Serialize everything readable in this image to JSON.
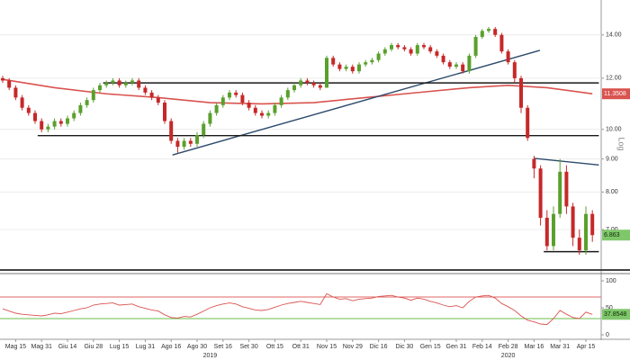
{
  "chart_data": {
    "type": "candlestick",
    "categories": [
      null,
      null,
      "Mag 15",
      null,
      null,
      null,
      "Mag 31",
      null,
      null,
      null,
      "Giu 14",
      null,
      null,
      null,
      "Giu 28",
      null,
      null,
      null,
      "Lug 15",
      null,
      null,
      null,
      "Lug 31",
      null,
      null,
      null,
      "Ago 16",
      null,
      null,
      null,
      "Ago 30",
      null,
      null,
      null,
      "Set 16",
      null,
      null,
      null,
      "Set 30",
      null,
      null,
      null,
      "Ott 15",
      null,
      null,
      null,
      "Ott 31",
      null,
      null,
      null,
      "Nov 15",
      null,
      null,
      null,
      "Nov 29",
      null,
      null,
      null,
      "Dic 16",
      null,
      null,
      null,
      "Dic 30",
      null,
      null,
      null,
      "Gen 15",
      null,
      null,
      null,
      "Gen 31",
      null,
      null,
      null,
      "Feb 14",
      null,
      null,
      null,
      "Feb 28",
      null,
      null,
      null,
      "Mar 16",
      null,
      null,
      null,
      "Mar 31",
      null,
      null,
      null,
      "Apr 15",
      null
    ],
    "open": [
      12.0,
      11.9,
      11.6,
      11.2,
      10.8,
      10.6,
      10.3,
      10.0,
      10.1,
      10.3,
      10.2,
      10.4,
      10.6,
      10.9,
      11.1,
      11.5,
      11.7,
      11.8,
      11.9,
      11.7,
      11.8,
      11.9,
      11.6,
      11.4,
      11.2,
      11.0,
      10.3,
      9.6,
      9.4,
      9.6,
      9.5,
      9.8,
      10.2,
      10.6,
      10.9,
      11.2,
      11.4,
      11.3,
      11.0,
      10.8,
      10.6,
      10.5,
      10.6,
      10.9,
      11.2,
      11.5,
      11.7,
      11.9,
      11.8,
      11.7,
      11.6,
      12.9,
      12.6,
      12.4,
      12.5,
      12.3,
      12.6,
      12.7,
      12.8,
      13.1,
      13.3,
      13.5,
      13.4,
      13.3,
      13.1,
      13.5,
      13.4,
      13.2,
      13.0,
      12.7,
      12.5,
      12.6,
      12.3,
      13.0,
      13.9,
      14.2,
      14.3,
      14.0,
      13.2,
      12.7,
      12.0,
      10.8,
      9.0,
      8.7,
      7.3,
      6.6,
      7.4,
      8.6,
      7.6,
      6.8,
      6.5,
      7.4
    ],
    "high": [
      12.1,
      12.0,
      11.7,
      11.3,
      10.9,
      10.7,
      10.4,
      10.2,
      10.4,
      10.4,
      10.5,
      10.7,
      11.0,
      11.2,
      11.6,
      11.8,
      11.9,
      12.0,
      12.0,
      11.9,
      12.0,
      12.0,
      11.7,
      11.5,
      11.3,
      11.1,
      10.4,
      9.7,
      9.7,
      9.7,
      9.9,
      10.3,
      10.7,
      11.0,
      11.3,
      11.5,
      11.5,
      11.4,
      11.1,
      10.9,
      10.7,
      10.7,
      11.0,
      11.3,
      11.6,
      11.8,
      12.0,
      12.0,
      11.9,
      11.8,
      13.0,
      13.0,
      12.7,
      12.6,
      12.6,
      12.7,
      12.8,
      12.9,
      13.2,
      13.4,
      13.6,
      13.6,
      13.5,
      13.4,
      13.6,
      13.6,
      13.5,
      13.3,
      13.1,
      12.8,
      12.7,
      12.7,
      13.1,
      14.0,
      14.3,
      14.4,
      14.4,
      14.1,
      13.3,
      12.8,
      12.1,
      10.9,
      9.1,
      8.8,
      7.5,
      7.6,
      9.0,
      8.8,
      7.7,
      7.0,
      7.6,
      7.5
    ],
    "low": [
      11.8,
      11.5,
      11.1,
      10.7,
      10.5,
      10.2,
      9.9,
      9.9,
      10.0,
      10.1,
      10.1,
      10.3,
      10.5,
      10.8,
      11.0,
      11.4,
      11.6,
      11.7,
      11.6,
      11.6,
      11.7,
      11.5,
      11.3,
      11.1,
      10.9,
      10.2,
      9.5,
      9.2,
      9.3,
      9.4,
      9.4,
      9.7,
      10.1,
      10.5,
      10.8,
      11.1,
      11.2,
      10.9,
      10.7,
      10.5,
      10.4,
      10.4,
      10.5,
      10.8,
      11.1,
      11.4,
      11.6,
      11.7,
      11.6,
      11.5,
      11.6,
      12.5,
      12.3,
      12.3,
      12.2,
      12.2,
      12.5,
      12.6,
      12.7,
      13.0,
      13.2,
      13.3,
      13.2,
      13.0,
      13.0,
      13.3,
      13.1,
      12.9,
      12.6,
      12.4,
      12.4,
      12.2,
      12.2,
      12.9,
      13.8,
      14.1,
      13.9,
      13.1,
      12.6,
      11.8,
      10.6,
      9.6,
      8.4,
      7.1,
      6.5,
      6.5,
      7.3,
      7.4,
      6.6,
      6.4,
      6.4,
      6.7
    ],
    "close": [
      11.9,
      11.6,
      11.2,
      10.8,
      10.6,
      10.3,
      10.0,
      10.1,
      10.3,
      10.2,
      10.4,
      10.6,
      10.9,
      11.1,
      11.5,
      11.7,
      11.8,
      11.9,
      11.7,
      11.8,
      11.9,
      11.6,
      11.4,
      11.2,
      11.0,
      10.3,
      9.6,
      9.4,
      9.6,
      9.5,
      9.8,
      10.2,
      10.6,
      10.9,
      11.2,
      11.4,
      11.3,
      11.0,
      10.8,
      10.6,
      10.5,
      10.6,
      10.9,
      11.2,
      11.5,
      11.7,
      11.9,
      11.8,
      11.7,
      11.6,
      12.9,
      12.6,
      12.4,
      12.5,
      12.3,
      12.6,
      12.7,
      12.8,
      13.1,
      13.3,
      13.5,
      13.4,
      13.3,
      13.1,
      13.5,
      13.4,
      13.2,
      13.0,
      12.7,
      12.5,
      12.6,
      12.3,
      13.0,
      13.9,
      14.2,
      14.3,
      14.0,
      13.2,
      12.7,
      12.0,
      10.8,
      9.7,
      8.7,
      7.3,
      6.6,
      7.4,
      8.6,
      7.6,
      6.8,
      6.5,
      7.4,
      6.863
    ],
    "close_label": "6.863",
    "colors": {
      "up": "#5aa02c",
      "down": "#c62828"
    },
    "ylim": [
      6.1,
      15.6
    ],
    "log_scale": true,
    "scale_label": "Log",
    "yticks": [
      {
        "value": 7,
        "label": "7.00"
      },
      {
        "value": 8,
        "label": "8.00"
      },
      {
        "value": 9,
        "label": "9.00"
      },
      {
        "value": 10,
        "label": "10.00"
      },
      {
        "value": 12,
        "label": "12.00"
      },
      {
        "value": 14,
        "label": "14.00"
      }
    ],
    "grid": true,
    "moving_average": {
      "color": "#d9534f",
      "x": [
        0,
        8,
        16,
        24,
        32,
        40,
        48,
        56,
        64,
        72,
        78,
        84,
        91
      ],
      "values": [
        11.95,
        11.6,
        11.35,
        11.2,
        11.0,
        10.95,
        11.0,
        11.2,
        11.4,
        11.6,
        11.7,
        11.6,
        11.3508
      ],
      "value_label": "11.3508"
    },
    "trendlines": [
      {
        "color": "#2c4a6b",
        "x": [
          26.2,
          82.9
        ],
        "values": [
          9.13,
          13.25
        ]
      },
      {
        "color": "#1a1a1a",
        "x": [
          15.5,
          92
        ],
        "values": [
          11.8,
          11.8
        ]
      },
      {
        "color": "#1a1a1a",
        "x": [
          5.4,
          92
        ],
        "values": [
          9.78,
          9.78
        ]
      },
      {
        "color": "#1a1a1a",
        "x": [
          83.5,
          92
        ],
        "values": [
          6.47,
          6.47
        ]
      },
      {
        "color": "#2c4a6b",
        "x": [
          82,
          92
        ],
        "values": [
          9.02,
          8.81
        ]
      }
    ],
    "year_labels": [
      {
        "label": "2019",
        "index": 32
      },
      {
        "label": "2020",
        "index": 78
      }
    ],
    "rsi": {
      "color": "#d9534f",
      "ylim": [
        0,
        100
      ],
      "yticks": [
        0,
        50,
        100
      ],
      "overbought": 70,
      "oversold": 30,
      "overbought_color": "#e06666",
      "oversold_color": "#6abf4b",
      "values": [
        48,
        44,
        40,
        38,
        37,
        36,
        35,
        37,
        40,
        39,
        42,
        45,
        48,
        50,
        55,
        57,
        58,
        59,
        55,
        56,
        57,
        52,
        49,
        46,
        44,
        37,
        32,
        31,
        34,
        33,
        38,
        44,
        50,
        54,
        57,
        59,
        57,
        52,
        49,
        46,
        45,
        47,
        51,
        55,
        58,
        60,
        62,
        60,
        58,
        56,
        76,
        70,
        66,
        67,
        63,
        66,
        67,
        68,
        71,
        72,
        73,
        70,
        68,
        64,
        68,
        66,
        62,
        59,
        55,
        52,
        54,
        50,
        62,
        70,
        72,
        73,
        68,
        58,
        52,
        45,
        35,
        27,
        24,
        20,
        19,
        30,
        45,
        38,
        32,
        30,
        42,
        37.8548
      ],
      "value_label": "37.8548"
    }
  }
}
